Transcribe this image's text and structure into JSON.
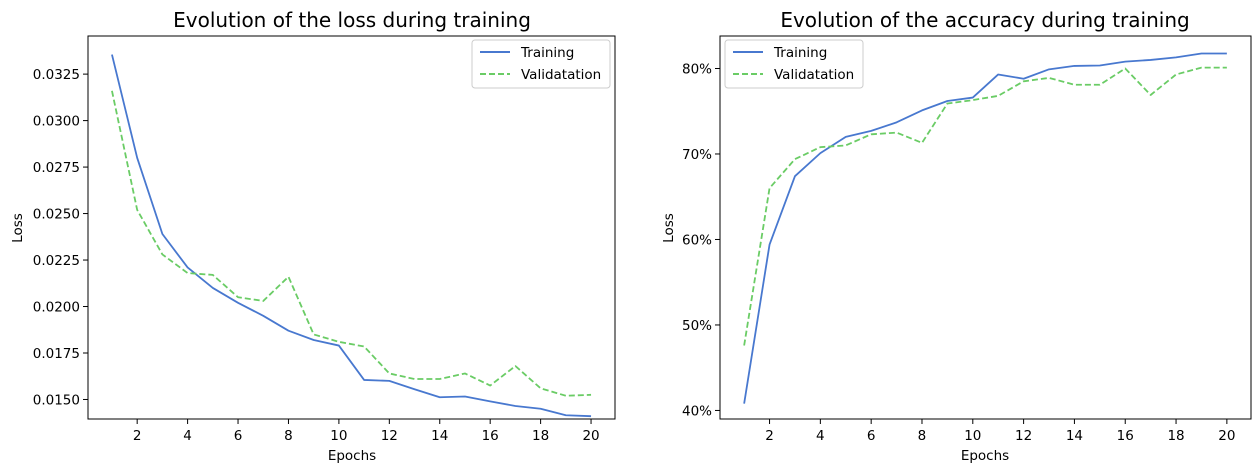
{
  "colors": {
    "training": "#4878cf",
    "validation": "#6acc65",
    "axis": "#000000",
    "legend_border": "#cccccc"
  },
  "chart_data": [
    {
      "type": "line",
      "title": "Evolution of the loss during training",
      "xlabel": "Epochs",
      "ylabel": "Loss",
      "x": [
        1,
        2,
        3,
        4,
        5,
        6,
        7,
        8,
        9,
        10,
        11,
        12,
        13,
        14,
        15,
        16,
        17,
        18,
        19,
        20
      ],
      "xlim": [
        0.05,
        20.95
      ],
      "ylim": [
        0.01395,
        0.03455
      ],
      "xticks": [
        2,
        4,
        6,
        8,
        10,
        12,
        14,
        16,
        18,
        20
      ],
      "yticks": [
        0.015,
        0.0175,
        0.02,
        0.0225,
        0.025,
        0.0275,
        0.03,
        0.0325
      ],
      "ytick_labels": [
        "0.0150",
        "0.0175",
        "0.0200",
        "0.0225",
        "0.0250",
        "0.0275",
        "0.0300",
        "0.0325"
      ],
      "grid": false,
      "legend_position": "upper right",
      "series": [
        {
          "name": "Training",
          "style": "solid",
          "color_key": "training",
          "values": [
            0.03355,
            0.028,
            0.0239,
            0.0221,
            0.021,
            0.0202,
            0.0195,
            0.0187,
            0.0182,
            0.0179,
            0.01605,
            0.016,
            0.01555,
            0.01512,
            0.01516,
            0.0149,
            0.01465,
            0.0145,
            0.01415,
            0.0141
          ]
        },
        {
          "name": "Validatation",
          "style": "dashed",
          "color_key": "validation",
          "values": [
            0.0316,
            0.0252,
            0.0228,
            0.0218,
            0.0217,
            0.0205,
            0.0203,
            0.0216,
            0.0185,
            0.0181,
            0.01785,
            0.0164,
            0.0161,
            0.0161,
            0.0164,
            0.01575,
            0.0168,
            0.0156,
            0.0152,
            0.01525
          ]
        }
      ]
    },
    {
      "type": "line",
      "title": "Evolution of the accuracy during training",
      "xlabel": "Epochs",
      "ylabel": "Loss",
      "x": [
        1,
        2,
        3,
        4,
        5,
        6,
        7,
        8,
        9,
        10,
        11,
        12,
        13,
        14,
        15,
        16,
        17,
        18,
        19,
        20
      ],
      "xlim": [
        0.05,
        20.95
      ],
      "ylim": [
        39.0,
        83.8
      ],
      "xticks": [
        2,
        4,
        6,
        8,
        10,
        12,
        14,
        16,
        18,
        20
      ],
      "yticks": [
        40,
        50,
        60,
        70,
        80
      ],
      "ytick_labels": [
        "40%",
        "50%",
        "60%",
        "70%",
        "80%"
      ],
      "grid": false,
      "legend_position": "upper left",
      "series": [
        {
          "name": "Training",
          "style": "solid",
          "color_key": "training",
          "values": [
            40.8,
            59.4,
            67.4,
            70.1,
            72.0,
            72.7,
            73.7,
            75.1,
            76.2,
            76.6,
            79.3,
            78.8,
            79.9,
            80.3,
            80.35,
            80.8,
            81.0,
            81.3,
            81.75,
            81.75
          ]
        },
        {
          "name": "Validatation",
          "style": "dashed",
          "color_key": "validation",
          "values": [
            47.6,
            66.0,
            69.4,
            70.8,
            71.0,
            72.3,
            72.5,
            71.3,
            75.9,
            76.3,
            76.8,
            78.5,
            78.9,
            78.1,
            78.1,
            80.0,
            76.9,
            79.3,
            80.1,
            80.1
          ]
        }
      ]
    }
  ]
}
